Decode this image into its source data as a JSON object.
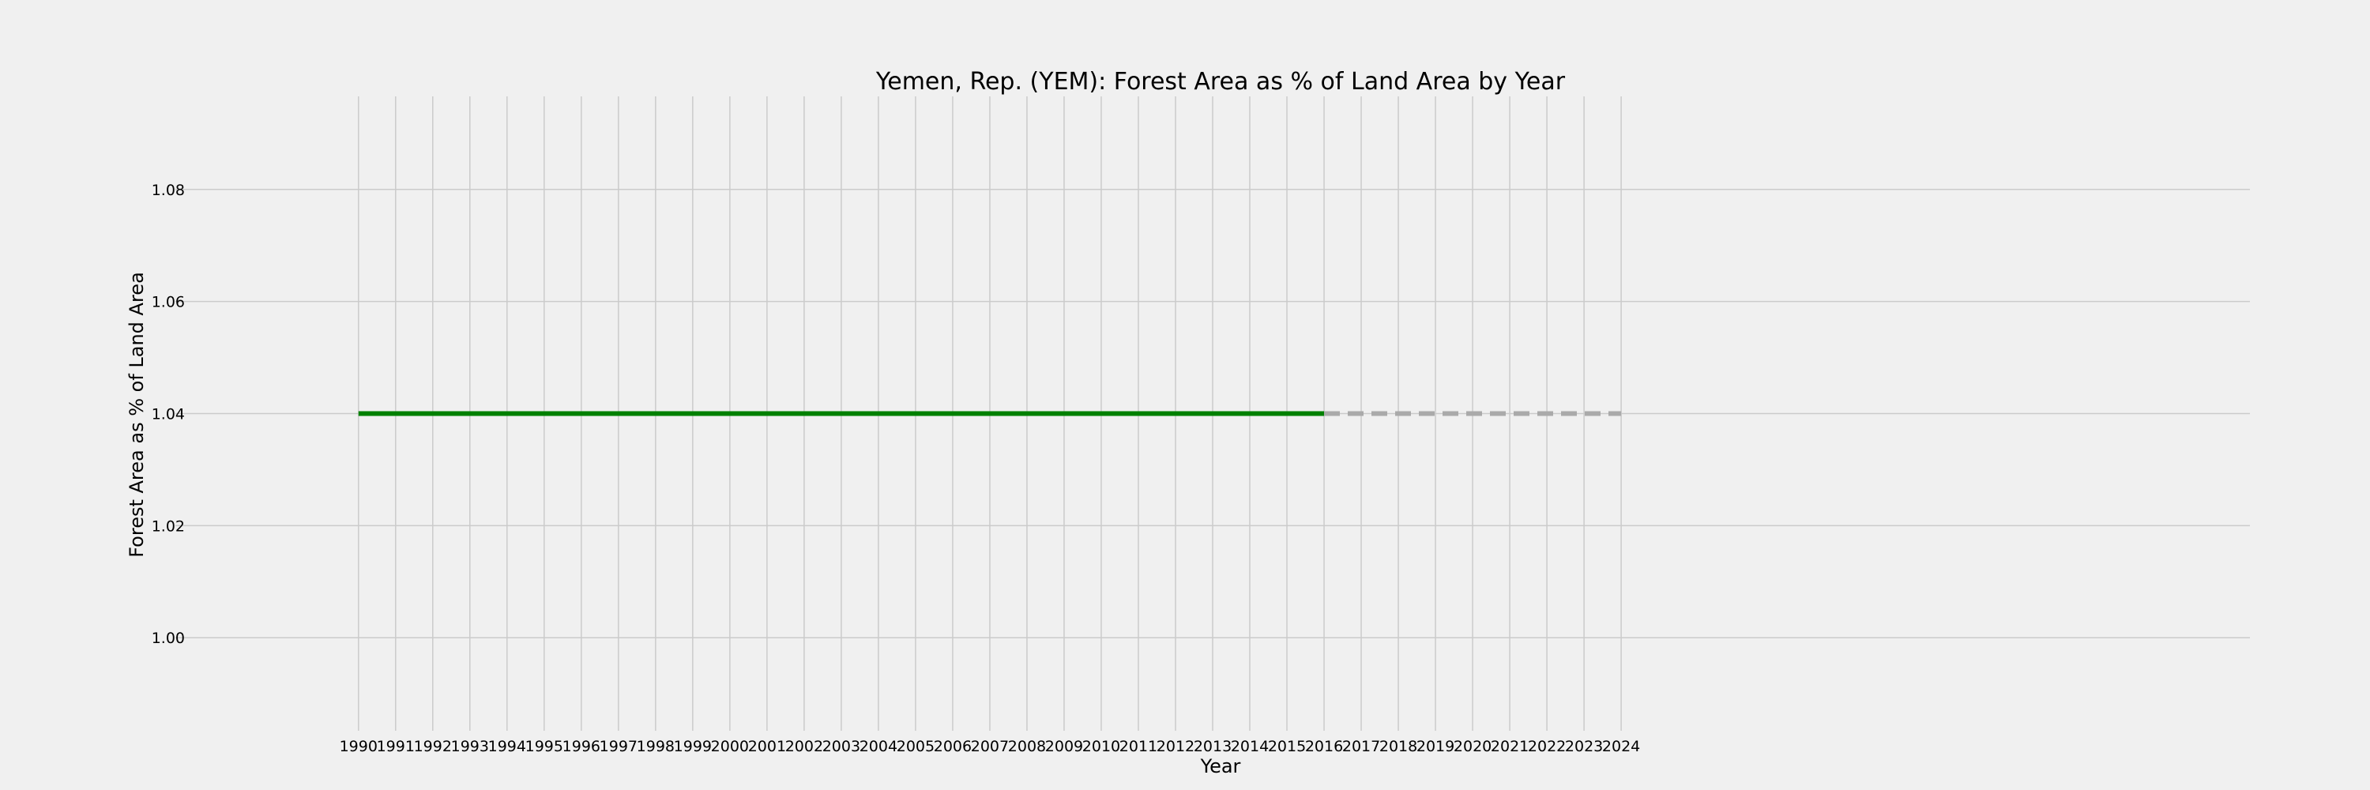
{
  "chart_data": {
    "type": "line",
    "title": "Yemen, Rep. (YEM): Forest Area as % of Land Area by Year",
    "xlabel": "Year",
    "ylabel": "Forest Area as % of Land Area",
    "xlim": [
      1985.07,
      2040.93
    ],
    "ylim": [
      0.9834,
      1.0966
    ],
    "x_ticks": [
      1990,
      1991,
      1992,
      1993,
      1994,
      1995,
      1996,
      1997,
      1998,
      1999,
      2000,
      2001,
      2002,
      2003,
      2004,
      2005,
      2006,
      2007,
      2008,
      2009,
      2010,
      2011,
      2012,
      2013,
      2014,
      2015,
      2016,
      2017,
      2018,
      2019,
      2020,
      2021,
      2022,
      2023,
      2024
    ],
    "y_ticks": [
      1.0,
      1.02,
      1.04,
      1.06,
      1.08
    ],
    "y_tick_labels": [
      "1.00",
      "1.02",
      "1.04",
      "1.06",
      "1.08"
    ],
    "grid": true,
    "series": [
      {
        "style": "solid",
        "color": "#008000",
        "x": [
          1990,
          1991,
          1992,
          1993,
          1994,
          1995,
          1996,
          1997,
          1998,
          1999,
          2000,
          2001,
          2002,
          2003,
          2004,
          2005,
          2006,
          2007,
          2008,
          2009,
          2010,
          2011,
          2012,
          2013,
          2014,
          2015,
          2016
        ],
        "values": [
          1.04,
          1.04,
          1.04,
          1.04,
          1.04,
          1.04,
          1.04,
          1.04,
          1.04,
          1.04,
          1.04,
          1.04,
          1.04,
          1.04,
          1.04,
          1.04,
          1.04,
          1.04,
          1.04,
          1.04,
          1.04,
          1.04,
          1.04,
          1.04,
          1.04,
          1.04,
          1.04
        ]
      },
      {
        "style": "dashed",
        "color": "#aaaaaa",
        "x": [
          2016,
          2024
        ],
        "values": [
          1.04,
          1.04
        ]
      }
    ]
  }
}
